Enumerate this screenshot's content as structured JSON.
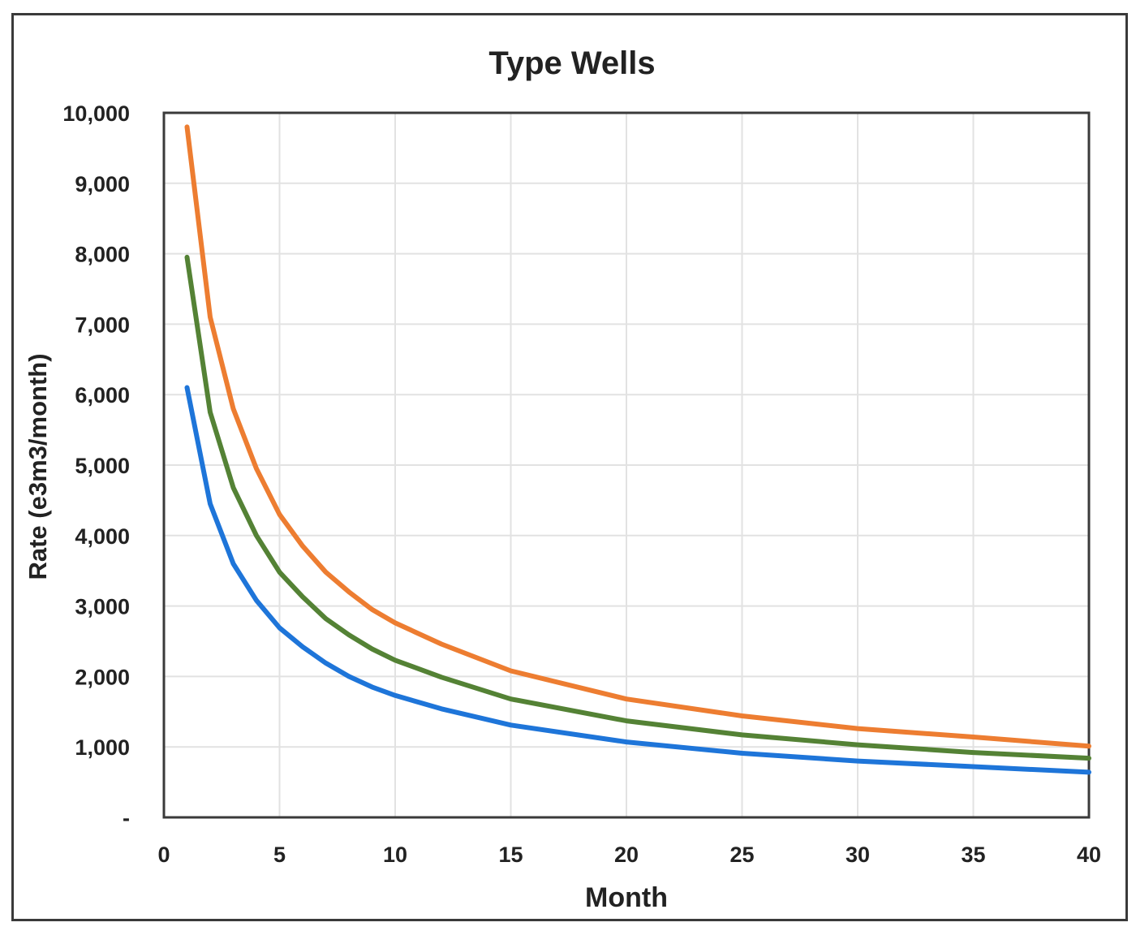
{
  "chart_data": {
    "type": "line",
    "title": "Type Wells",
    "xlabel": "Month",
    "ylabel": "Rate (e3m3/month)",
    "xlim": [
      0,
      40
    ],
    "ylim": [
      0,
      10000
    ],
    "x_ticks": [
      0,
      5,
      10,
      15,
      20,
      25,
      30,
      35,
      40
    ],
    "x_tick_labels": [
      "0",
      "5",
      "10",
      "15",
      "20",
      "25",
      "30",
      "35",
      "40"
    ],
    "y_ticks": [
      0,
      1000,
      2000,
      3000,
      4000,
      5000,
      6000,
      7000,
      8000,
      9000,
      10000
    ],
    "y_tick_labels": [
      "-",
      "1,000",
      "2,000",
      "3,000",
      "4,000",
      "5,000",
      "6,000",
      "7,000",
      "8,000",
      "9,000",
      "10,000"
    ],
    "grid": true,
    "legend": "none",
    "x": [
      1,
      2,
      3,
      4,
      5,
      6,
      7,
      8,
      9,
      10,
      12,
      15,
      20,
      25,
      30,
      35,
      40
    ],
    "series": [
      {
        "color": "#ed7d31",
        "values": [
          9800,
          7100,
          5800,
          4950,
          4300,
          3850,
          3480,
          3200,
          2950,
          2760,
          2460,
          2080,
          1680,
          1440,
          1260,
          1140,
          1010
        ]
      },
      {
        "color": "#548235",
        "values": [
          7950,
          5750,
          4680,
          4000,
          3480,
          3130,
          2820,
          2590,
          2390,
          2230,
          1990,
          1680,
          1370,
          1170,
          1030,
          920,
          840
        ]
      },
      {
        "color": "#1e75d9",
        "values": [
          6100,
          4450,
          3600,
          3080,
          2690,
          2420,
          2190,
          2000,
          1850,
          1730,
          1540,
          1310,
          1070,
          910,
          800,
          720,
          640
        ]
      }
    ]
  }
}
